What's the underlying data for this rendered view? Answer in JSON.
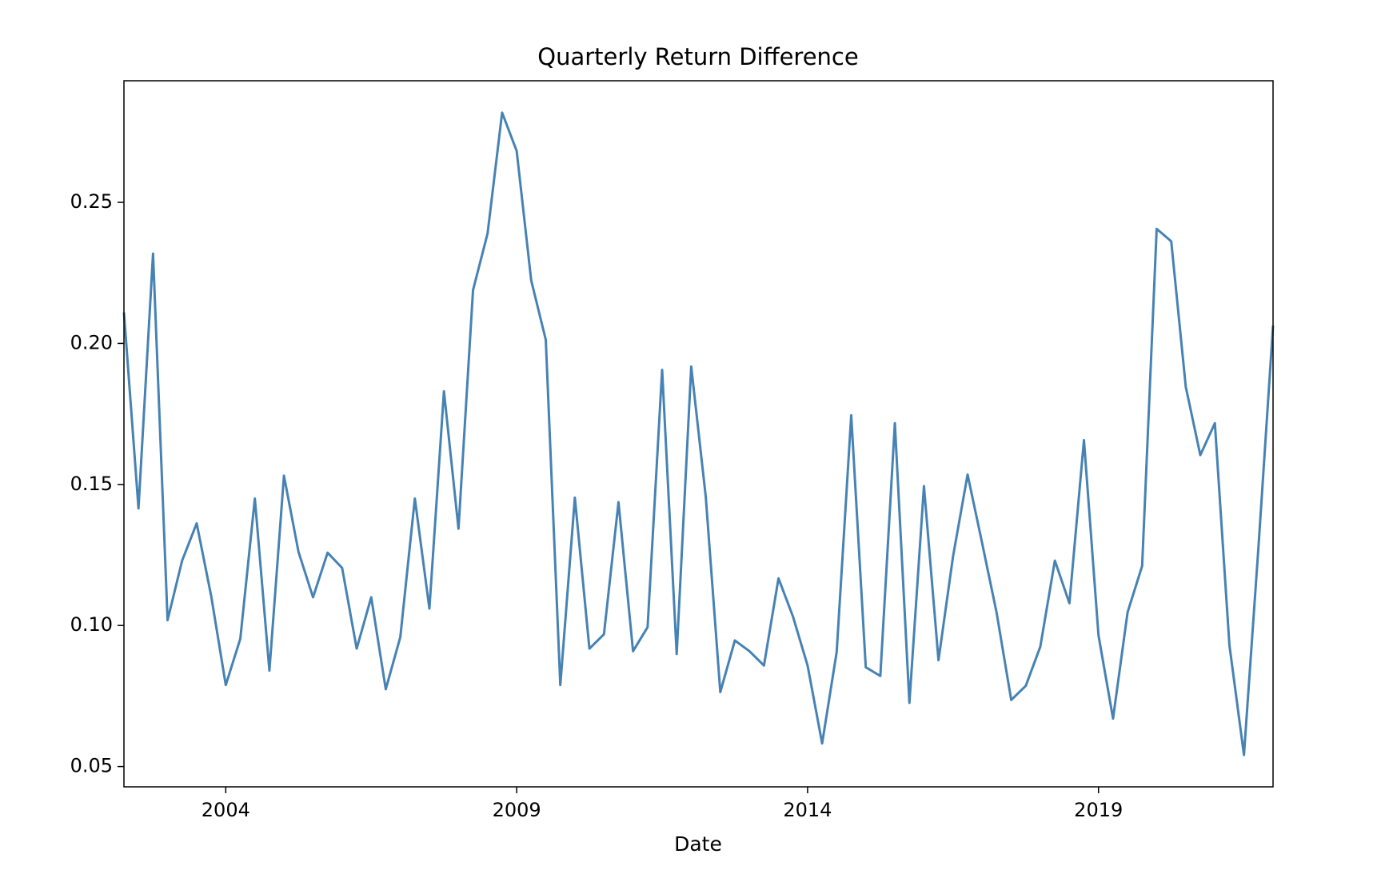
{
  "chart_data": {
    "type": "line",
    "title": "Quarterly Return Difference",
    "xlabel": "Date",
    "color": "#4682b4",
    "x": [
      2002.25,
      2002.5,
      2002.75,
      2003,
      2003.25,
      2003.5,
      2003.75,
      2004,
      2004.25,
      2004.5,
      2004.75,
      2005,
      2005.25,
      2005.5,
      2005.75,
      2006,
      2006.25,
      2006.5,
      2006.75,
      2007,
      2007.25,
      2007.5,
      2007.75,
      2008,
      2008.25,
      2008.5,
      2008.75,
      2009,
      2009.25,
      2009.5,
      2009.75,
      2010,
      2010.25,
      2010.5,
      2010.75,
      2011,
      2011.25,
      2011.5,
      2011.75,
      2012,
      2012.25,
      2012.5,
      2012.75,
      2013,
      2013.25,
      2013.5,
      2013.75,
      2014,
      2014.25,
      2014.5,
      2014.75,
      2015,
      2015.25,
      2015.5,
      2015.75,
      2016,
      2016.25,
      2016.5,
      2016.75,
      2017,
      2017.25,
      2017.5,
      2017.75,
      2018,
      2018.25,
      2018.5,
      2018.75,
      2019,
      2019.25,
      2019.5,
      2019.75,
      2020,
      2020.25,
      2020.5,
      2020.75,
      2021,
      2021.25,
      2021.5,
      2021.75,
      2022
    ],
    "values": [
      0.211,
      0.1415,
      0.2318,
      0.1019,
      0.123,
      0.1362,
      0.1104,
      0.0789,
      0.0953,
      0.145,
      0.084,
      0.1531,
      0.1261,
      0.11,
      0.1258,
      0.1204,
      0.0918,
      0.11,
      0.0774,
      0.0959,
      0.145,
      0.106,
      0.183,
      0.1343,
      0.2189,
      0.239,
      0.2818,
      0.2682,
      0.2223,
      0.2013,
      0.0789,
      0.1453,
      0.0918,
      0.0969,
      0.1437,
      0.0909,
      0.0994,
      0.1906,
      0.0899,
      0.1918,
      0.1456,
      0.0764,
      0.0947,
      0.0909,
      0.0858,
      0.1167,
      0.1031,
      0.0858,
      0.0582,
      0.0906,
      0.1745,
      0.0852,
      0.0821,
      0.1717,
      0.0726,
      0.1494,
      0.0877,
      0.1245,
      0.1535,
      0.1292,
      0.1044,
      0.0736,
      0.0786,
      0.0925,
      0.123,
      0.1079,
      0.1657,
      0.0965,
      0.067,
      0.1047,
      0.1211,
      0.2406,
      0.2362,
      0.1846,
      0.1604,
      0.1717,
      0.0931,
      0.0541,
      0.128,
      0.2063
    ],
    "xlim": [
      2002.25,
      2022
    ],
    "xticks": [
      2004,
      2009,
      2014,
      2019
    ],
    "ylim": [
      0.0428,
      0.2931
    ],
    "yticks": [
      0.05,
      {
        "value": 0.1,
        "label": "0.10"
      },
      0.15,
      {
        "value": 0.2,
        "label": "0.20"
      },
      0.25
    ]
  }
}
